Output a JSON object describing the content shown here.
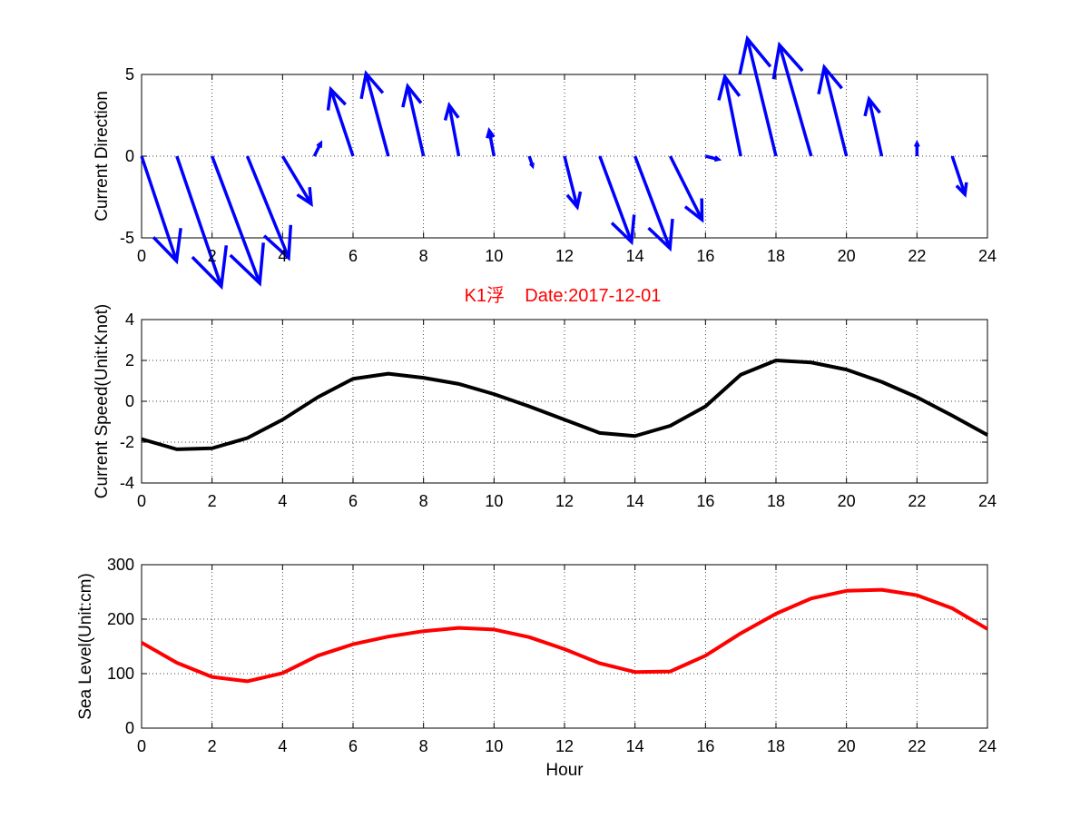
{
  "figure": {
    "title": "K1浮    Date:2017-12-01",
    "title_color": "#ff0000"
  },
  "chart_data": [
    {
      "type": "quiver",
      "ylabel": "Current Direction",
      "xlabel": "",
      "xlim": [
        0,
        24
      ],
      "ylim": [
        -5,
        5
      ],
      "xticks": [
        0,
        2,
        4,
        6,
        8,
        10,
        12,
        14,
        16,
        18,
        20,
        22,
        24
      ],
      "yticks": [
        -5,
        0,
        5
      ],
      "grid": true,
      "color": "#0000ff",
      "vectors": [
        {
          "x": 0,
          "u": 1.1,
          "v": -3.3
        },
        {
          "x": 1,
          "u": 1.4,
          "v": -4.1
        },
        {
          "x": 2,
          "u": 1.5,
          "v": -4.0
        },
        {
          "x": 3,
          "u": 1.3,
          "v": -3.2
        },
        {
          "x": 4,
          "u": 0.9,
          "v": -1.5
        },
        {
          "x": 4.9,
          "u": 0.2,
          "v": 0.4
        },
        {
          "x": 6,
          "u": -0.7,
          "v": 2.1
        },
        {
          "x": 7,
          "u": -0.7,
          "v": 2.6
        },
        {
          "x": 8,
          "u": -0.5,
          "v": 2.2
        },
        {
          "x": 9,
          "u": -0.3,
          "v": 1.6
        },
        {
          "x": 10,
          "u": -0.15,
          "v": 0.8
        },
        {
          "x": 11,
          "u": 0.1,
          "v": -0.3
        },
        {
          "x": 12,
          "u": 0.4,
          "v": -1.6
        },
        {
          "x": 13,
          "u": 1.0,
          "v": -2.7
        },
        {
          "x": 14,
          "u": 1.1,
          "v": -2.9
        },
        {
          "x": 15,
          "u": 1.0,
          "v": -2.0
        },
        {
          "x": 16,
          "u": 0.4,
          "v": -0.1
        },
        {
          "x": 17,
          "u": -0.5,
          "v": 2.5
        },
        {
          "x": 18,
          "u": -0.9,
          "v": 3.7
        },
        {
          "x": 19,
          "u": -1.0,
          "v": 3.5
        },
        {
          "x": 20,
          "u": -0.7,
          "v": 2.8
        },
        {
          "x": 21,
          "u": -0.4,
          "v": 1.8
        },
        {
          "x": 22,
          "u": 0.0,
          "v": 0.4
        },
        {
          "x": 23,
          "u": 0.4,
          "v": -1.2
        }
      ]
    },
    {
      "type": "line",
      "ylabel": "Current Speed(Unit:Knot)",
      "xlabel": "",
      "xlim": [
        0,
        24
      ],
      "ylim": [
        -4,
        4
      ],
      "xticks": [
        0,
        2,
        4,
        6,
        8,
        10,
        12,
        14,
        16,
        18,
        20,
        22,
        24
      ],
      "yticks": [
        -4,
        -2,
        0,
        2,
        4
      ],
      "grid": true,
      "color": "#000000",
      "x": [
        0,
        1,
        2,
        3,
        4,
        5,
        6,
        7,
        8,
        9,
        10,
        11,
        12,
        13,
        14,
        15,
        16,
        17,
        18,
        19,
        20,
        21,
        22,
        23,
        24
      ],
      "y": [
        -1.85,
        -2.35,
        -2.3,
        -1.8,
        -0.9,
        0.2,
        1.1,
        1.35,
        1.15,
        0.85,
        0.35,
        -0.25,
        -0.9,
        -1.55,
        -1.7,
        -1.2,
        -0.25,
        1.3,
        2.0,
        1.9,
        1.55,
        0.95,
        0.2,
        -0.7,
        -1.65
      ]
    },
    {
      "type": "line",
      "ylabel": "Sea Level(Unit:cm)",
      "xlabel": "Hour",
      "xlim": [
        0,
        24
      ],
      "ylim": [
        0,
        300
      ],
      "xticks": [
        0,
        2,
        4,
        6,
        8,
        10,
        12,
        14,
        16,
        18,
        20,
        22,
        24
      ],
      "yticks": [
        0,
        100,
        200,
        300
      ],
      "grid": true,
      "color": "#ff0000",
      "x": [
        0,
        1,
        2,
        3,
        4,
        5,
        6,
        7,
        8,
        9,
        10,
        11,
        12,
        13,
        14,
        15,
        16,
        17,
        18,
        19,
        20,
        21,
        22,
        23,
        24
      ],
      "y": [
        157,
        120,
        94,
        86,
        101,
        133,
        154,
        168,
        178,
        184,
        181,
        167,
        145,
        119,
        103,
        104,
        133,
        174,
        210,
        238,
        252,
        254,
        244,
        220,
        182
      ]
    }
  ]
}
